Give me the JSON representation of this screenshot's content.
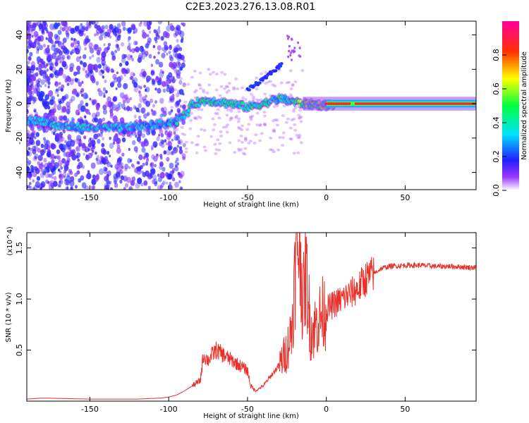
{
  "title": "C2E3.2023.276.13.08.R01",
  "colors": {
    "snr_line": "#e8302a",
    "frame": "#000000",
    "background": "#ffffff"
  },
  "chart_data": [
    {
      "type": "heatmap",
      "name": "spectrogram",
      "xlabel": "Height of straight line (km)",
      "ylabel": "Frequency (Hz)",
      "xlim": [
        -190,
        95
      ],
      "ylim": [
        -50,
        48
      ],
      "xticks": [
        -150,
        -100,
        -50,
        0,
        50
      ],
      "yticks": [
        -40,
        -20,
        0,
        20,
        40
      ],
      "colorbar": {
        "label": "Normalized spectral amplitude",
        "range": [
          0,
          1
        ],
        "ticks": [
          "0.0",
          "0.2",
          "0.4",
          "0.6",
          "0.8"
        ],
        "colormap": "rainbow (violet-blue-cyan-green-yellow-red-magenta)"
      },
      "features": [
        {
          "desc": "main trace",
          "points": [
            [
              -190,
              -10
            ],
            [
              -180,
              -10
            ],
            [
              -170,
              -13
            ],
            [
              -150,
              -14
            ],
            [
              -130,
              -14
            ],
            [
              -115,
              -13
            ],
            [
              -105,
              -12
            ],
            [
              -95,
              -10
            ],
            [
              -88,
              -5
            ],
            [
              -85,
              0
            ],
            [
              -75,
              2
            ],
            [
              -60,
              0
            ],
            [
              -50,
              -2
            ],
            [
              -40,
              0
            ],
            [
              -30,
              3
            ],
            [
              -25,
              2
            ],
            [
              -15,
              0
            ],
            [
              0,
              -1
            ],
            [
              10,
              0
            ],
            [
              95,
              0
            ]
          ]
        },
        {
          "desc": "upper trace",
          "points": [
            [
              -50,
              8
            ],
            [
              -40,
              14
            ],
            [
              -35,
              18
            ],
            [
              -28,
              23
            ]
          ]
        },
        {
          "desc": "constant carrier line",
          "x_start": 0,
          "x_end": 95,
          "freq": 0,
          "amplitude": 0.9
        }
      ]
    },
    {
      "type": "line",
      "name": "snr",
      "xlabel": "Height of straight line (km)",
      "ylabel": "SNR (10 * v/v)",
      "y_scale_note": "(x10^4)",
      "xlim": [
        -190,
        95
      ],
      "ylim": [
        0,
        1.65
      ],
      "xticks": [
        -150,
        -100,
        -50,
        0,
        50
      ],
      "yticks": [
        0.5,
        1.0,
        1.5
      ],
      "series": [
        {
          "name": "SNR",
          "x": [
            -190,
            -180,
            -150,
            -120,
            -105,
            -100,
            -95,
            -90,
            -85,
            -80,
            -78,
            -75,
            -70,
            -65,
            -60,
            -55,
            -50,
            -48,
            -45,
            -40,
            -35,
            -30,
            -25,
            -22,
            -20,
            -18,
            -16,
            -15,
            -13,
            -10,
            -8,
            -5,
            0,
            5,
            10,
            15,
            20,
            25,
            30,
            35,
            40,
            50,
            60,
            70,
            80,
            90,
            95
          ],
          "y": [
            0.02,
            0.03,
            0.02,
            0.02,
            0.03,
            0.04,
            0.06,
            0.1,
            0.15,
            0.2,
            0.45,
            0.4,
            0.5,
            0.45,
            0.4,
            0.35,
            0.3,
            0.15,
            0.1,
            0.15,
            0.25,
            0.35,
            0.5,
            0.7,
            1.2,
            1.6,
            1.4,
            0.9,
            1.3,
            0.7,
            0.7,
            0.8,
            0.9,
            0.95,
            1.0,
            1.05,
            1.1,
            1.2,
            1.25,
            1.3,
            1.32,
            1.33,
            1.33,
            1.32,
            1.32,
            1.31,
            1.31
          ]
        }
      ]
    }
  ]
}
